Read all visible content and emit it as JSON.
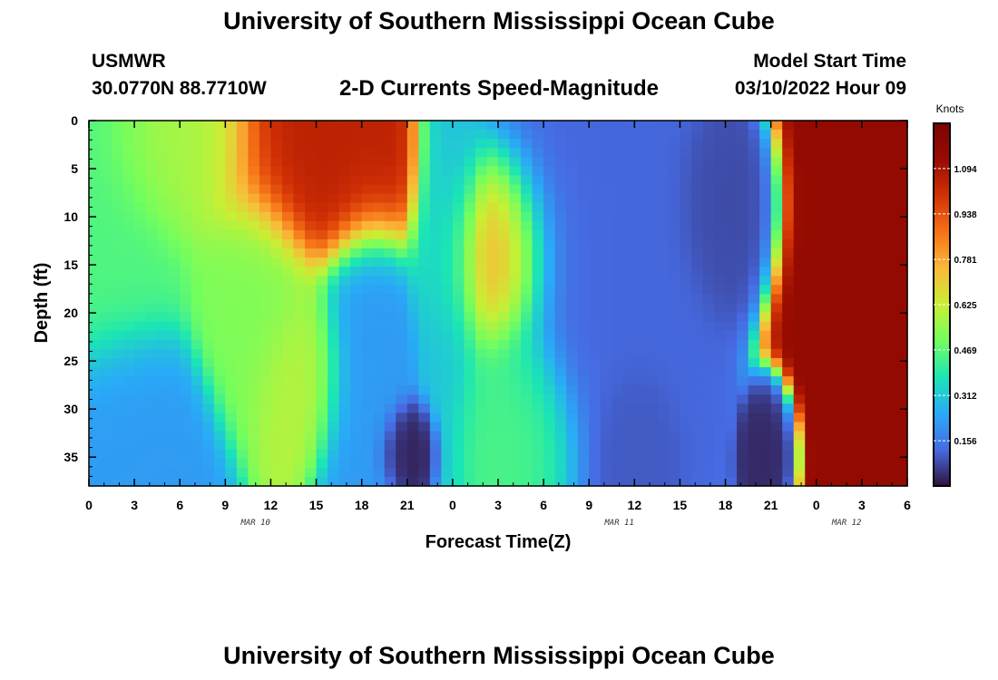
{
  "header": {
    "title": "University of Southern Mississippi Ocean Cube",
    "station": "USMWR",
    "coordinates": "30.0770N  88.7710W",
    "subtitle": "2-D Currents Speed-Magnitude",
    "model_start_label": "Model Start Time",
    "model_start_value": "03/10/2022 Hour 09"
  },
  "footer": {
    "title": "University of Southern Mississippi Ocean Cube"
  },
  "chart_data": {
    "type": "heatmap",
    "title": "2-D Currents Speed-Magnitude",
    "xlabel": "Forecast Time(Z)",
    "ylabel": "Depth (ft)",
    "x_tick_labels": [
      "0",
      "3",
      "6",
      "9",
      "12",
      "15",
      "18",
      "21",
      "0",
      "3",
      "6",
      "9",
      "12",
      "15",
      "18",
      "21",
      "0",
      "3",
      "6"
    ],
    "x_date_labels": [
      {
        "label": "MAR 10",
        "hour_index": 11
      },
      {
        "label": "MAR 11",
        "hour_index": 35
      },
      {
        "label": "MAR 12",
        "hour_index": 50
      }
    ],
    "x_range_hours": [
      0,
      54
    ],
    "y_tick_labels": [
      "0",
      "5",
      "10",
      "15",
      "20",
      "25",
      "30",
      "35"
    ],
    "y_ticks": [
      0,
      5,
      10,
      15,
      20,
      25,
      30,
      35
    ],
    "y_range": [
      0,
      38
    ],
    "y_inverted": true,
    "colorbar": {
      "unit": "Knots",
      "range": [
        0,
        1.25
      ],
      "ticks": [
        "1.094",
        "0.938",
        "0.781",
        "0.625",
        "0.469",
        "0.312",
        "0.156"
      ],
      "tick_values": [
        1.094,
        0.938,
        0.781,
        0.625,
        0.469,
        0.312,
        0.156
      ],
      "colormap": "turbo"
    },
    "features": [
      {
        "hour": 0,
        "depth": 10,
        "speed": 0.45,
        "spread_h": 4.0,
        "spread_d": 12
      },
      {
        "hour": 2,
        "depth": 32,
        "speed": 0.22,
        "spread_h": 3.5,
        "spread_d": 7
      },
      {
        "hour": 6,
        "depth": 3,
        "speed": 0.58,
        "spread_h": 3.5,
        "spread_d": 6
      },
      {
        "hour": 11,
        "depth": 18,
        "speed": 0.52,
        "spread_h": 2.5,
        "spread_d": 8
      },
      {
        "hour": 15,
        "depth": 4,
        "speed": 1.05,
        "spread_h": 4.0,
        "spread_d": 7
      },
      {
        "hour": 14,
        "depth": 26,
        "speed": 0.6,
        "spread_h": 2.0,
        "spread_d": 6
      },
      {
        "hour": 18,
        "depth": 26,
        "speed": 0.22,
        "spread_h": 2.0,
        "spread_d": 10
      },
      {
        "hour": 21,
        "depth": 34,
        "speed": 0.02,
        "spread_h": 1.2,
        "spread_d": 3
      },
      {
        "hour": 24,
        "depth": 12,
        "speed": 0.3,
        "spread_h": 1.5,
        "spread_d": 14
      },
      {
        "hour": 27,
        "depth": 14,
        "speed": 0.85,
        "spread_h": 2.5,
        "spread_d": 7
      },
      {
        "hour": 28,
        "depth": 30,
        "speed": 0.45,
        "spread_h": 2.5,
        "spread_d": 7
      },
      {
        "hour": 33,
        "depth": 12,
        "speed": 0.12,
        "spread_h": 5.0,
        "spread_d": 14
      },
      {
        "hour": 36,
        "depth": 33,
        "speed": 0.1,
        "spread_h": 1.5,
        "spread_d": 5
      },
      {
        "hour": 42,
        "depth": 9,
        "speed": 0.08,
        "spread_h": 2.0,
        "spread_d": 6
      },
      {
        "hour": 45,
        "depth": 34,
        "speed": 0.03,
        "spread_h": 1.0,
        "spread_d": 4
      },
      {
        "hour": 51,
        "depth": 12,
        "speed": 1.15,
        "spread_h": 3.0,
        "spread_d": 18
      }
    ]
  }
}
